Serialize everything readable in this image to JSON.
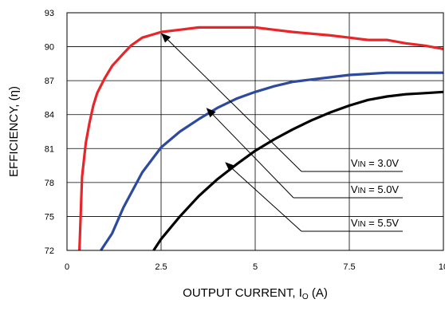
{
  "chart_data": {
    "type": "line",
    "title": "",
    "xlabel": "OUTPUT CURRENT, I",
    "xlabel_sub": "O",
    "xlabel_suffix": " (A)",
    "ylabel": "EFFICIENCY, (η)",
    "xlim": [
      0,
      10
    ],
    "ylim": [
      72,
      93
    ],
    "x_ticks": [
      0,
      2.5,
      5,
      7.5,
      10
    ],
    "x_tick_labels": [
      "0",
      "2.5",
      "5",
      "7.5",
      "10"
    ],
    "y_ticks": [
      72,
      75,
      78,
      81,
      84,
      87,
      90,
      93
    ],
    "y_tick_labels": [
      "72",
      "75",
      "78",
      "81",
      "84",
      "87",
      "90",
      "93"
    ],
    "grid": true,
    "series": [
      {
        "name": "VIN = 3.0V",
        "color": "#e8262a",
        "x": [
          0.33,
          0.4,
          0.5,
          0.6,
          0.7,
          0.8,
          1.0,
          1.2,
          1.5,
          1.7,
          2.0,
          2.3,
          2.5,
          3.0,
          3.5,
          4.0,
          4.5,
          5.0,
          5.5,
          6.0,
          7.0,
          7.5,
          8.0,
          8.5,
          9.0,
          9.5,
          10.0
        ],
        "y": [
          72,
          78.5,
          81.5,
          83.3,
          84.8,
          85.9,
          87.2,
          88.3,
          89.4,
          90.1,
          90.8,
          91.1,
          91.3,
          91.5,
          91.7,
          91.7,
          91.7,
          91.7,
          91.5,
          91.3,
          91.0,
          90.8,
          90.6,
          90.6,
          90.3,
          90.1,
          89.8
        ]
      },
      {
        "name": "VIN = 5.0V",
        "color": "#2d4a9e",
        "x": [
          0.9,
          1.0,
          1.2,
          1.5,
          2.0,
          2.5,
          3.0,
          3.5,
          4.0,
          4.5,
          5.0,
          5.5,
          6.0,
          6.5,
          7.0,
          7.5,
          8.0,
          8.5,
          9.0,
          9.5,
          10.0
        ],
        "y": [
          72,
          72.5,
          73.5,
          75.8,
          78.9,
          81.1,
          82.5,
          83.6,
          84.6,
          85.4,
          86.0,
          86.5,
          86.9,
          87.1,
          87.3,
          87.5,
          87.6,
          87.7,
          87.7,
          87.7,
          87.7
        ]
      },
      {
        "name": "VIN = 5.5V",
        "color": "#000000",
        "x": [
          2.3,
          2.5,
          3.0,
          3.5,
          4.0,
          4.5,
          5.0,
          5.5,
          6.0,
          6.5,
          7.0,
          7.5,
          8.0,
          8.5,
          9.0,
          9.5,
          10.0
        ],
        "y": [
          72,
          73.0,
          75.0,
          76.8,
          78.3,
          79.6,
          80.8,
          81.8,
          82.7,
          83.5,
          84.2,
          84.8,
          85.3,
          85.6,
          85.8,
          85.9,
          86.0
        ]
      }
    ],
    "annotations": [
      {
        "label_main": "V",
        "label_sub": "IN",
        "label_rest": " = 3.0V",
        "target": [
          2.5,
          91.2
        ],
        "series": 0
      },
      {
        "label_main": "V",
        "label_sub": "IN",
        "label_rest": " = 5.0V",
        "target": [
          3.7,
          84.6
        ],
        "series": 1
      },
      {
        "label_main": "V",
        "label_sub": "IN",
        "label_rest": " = 5.5V",
        "target": [
          4.2,
          79.8
        ],
        "series": 2
      }
    ]
  }
}
